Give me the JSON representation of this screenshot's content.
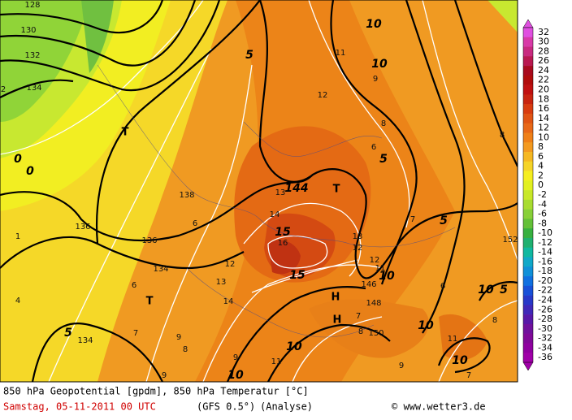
{
  "footer": {
    "line1": "850 hPa Geopotential [gpdm], 850 hPa Temperatur [°C]",
    "date": "Samstag, 05-11-2011  00 UTC",
    "model": "(GFS 0.5°)",
    "run": "(Analyse)",
    "credit": "© www.wetter3.de"
  },
  "legend": {
    "ticks": [
      32,
      30,
      28,
      26,
      24,
      22,
      20,
      18,
      16,
      14,
      12,
      10,
      8,
      6,
      4,
      2,
      0,
      -2,
      -4,
      -6,
      -8,
      -10,
      -12,
      -14,
      -16,
      -18,
      -20,
      -22,
      -24,
      -26,
      -28,
      -30,
      -32,
      -34,
      -36
    ],
    "colors": [
      "#e050e0",
      "#d83aa8",
      "#c82a80",
      "#b81850",
      "#a80a1e",
      "#b00c0c",
      "#c01010",
      "#c82410",
      "#d83c10",
      "#e05414",
      "#e86818",
      "#ef8018",
      "#f39a20",
      "#f5b822",
      "#f5d428",
      "#f5ee20",
      "#e2f020",
      "#c8e828",
      "#a8dc30",
      "#88d038",
      "#64c038",
      "#38b040",
      "#20b070",
      "#10b8a0",
      "#10a8c8",
      "#1090d8",
      "#1070e0",
      "#1850d8",
      "#2838c8",
      "#4028b8",
      "#5818a8",
      "#70109c",
      "#800898",
      "#9000a0",
      "#a000a8"
    ]
  },
  "map_labels": [
    "128",
    "130",
    "132",
    "134",
    "2",
    "0",
    "0",
    "T",
    "5",
    "10",
    "10",
    "11",
    "9",
    "12",
    "8",
    "6",
    "5",
    "144",
    "T",
    "13",
    "138",
    "136",
    "136",
    "1",
    "6",
    "14",
    "15",
    "16",
    "13",
    "12",
    "7",
    "5",
    "8",
    "152",
    "12",
    "134",
    "13",
    "6",
    "15",
    "12",
    "11",
    "10",
    "146",
    "T",
    "14",
    "6",
    "10",
    "5",
    "4",
    "148",
    "H",
    "H",
    "7",
    "8",
    "150",
    "10",
    "5",
    "134",
    "7",
    "9",
    "8",
    "10",
    "11",
    "10",
    "8",
    "9",
    "10",
    "11",
    "9",
    "7",
    "9"
  ]
}
